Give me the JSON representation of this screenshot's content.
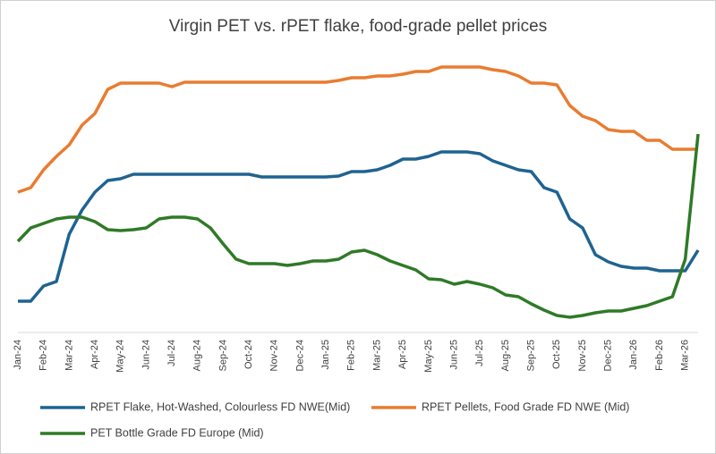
{
  "chart_data": {
    "type": "line",
    "title": "Virgin PET vs. rPET flake, food-grade pellet prices",
    "categories": [
      "Jan-24",
      null,
      "Feb-24",
      null,
      "Mar-24",
      null,
      "Apr-24",
      null,
      "May-24",
      null,
      "Jun-24",
      null,
      "Jul-24",
      null,
      "Aug-24",
      null,
      "Sep-24",
      null,
      "Oct-24",
      null,
      "Nov-24",
      null,
      "Dec-24",
      null,
      "Jan-25",
      null,
      "Feb-25",
      null,
      "Mar-25",
      null,
      "Apr-25",
      null,
      "May-25",
      null,
      "Jun-25",
      null,
      "Jul-25",
      null,
      "Aug-25",
      null,
      "Sep-25",
      null,
      "Oct-25",
      null,
      "Nov-25",
      null,
      "Dec-25",
      null,
      "Jan-26",
      null,
      "Feb-26",
      null,
      "Mar-26",
      null
    ],
    "ylim": [
      0,
      330
    ],
    "series": [
      {
        "name": "RPET Flake, Hot-Washed, Colourless FD NWE(Mid)",
        "color": "#1f6391",
        "values": [
          33,
          33,
          50,
          55,
          108,
          135,
          155,
          168,
          170,
          175,
          175,
          175,
          175,
          175,
          175,
          175,
          175,
          175,
          175,
          172,
          172,
          172,
          172,
          172,
          172,
          173,
          178,
          178,
          180,
          185,
          192,
          192,
          195,
          200,
          200,
          200,
          198,
          190,
          185,
          180,
          178,
          160,
          155,
          125,
          115,
          85,
          77,
          72,
          70,
          70,
          67,
          67,
          67,
          90
        ]
      },
      {
        "name": "RPET Pellets, Food Grade FD NWE (Mid)",
        "color": "#e97c30",
        "values": [
          155,
          160,
          180,
          195,
          208,
          230,
          243,
          270,
          277,
          277,
          277,
          277,
          273,
          278,
          278,
          278,
          278,
          278,
          278,
          278,
          278,
          278,
          278,
          278,
          278,
          280,
          283,
          283,
          285,
          285,
          287,
          290,
          290,
          295,
          295,
          295,
          295,
          292,
          290,
          285,
          277,
          277,
          275,
          252,
          240,
          235,
          225,
          223,
          223,
          213,
          213,
          203,
          203,
          203
        ]
      },
      {
        "name": "PET Bottle Grade FD Europe (Mid)",
        "color": "#2f7a27",
        "values": [
          100,
          115,
          120,
          125,
          127,
          127,
          122,
          113,
          112,
          113,
          115,
          125,
          127,
          127,
          125,
          115,
          97,
          80,
          75,
          75,
          75,
          73,
          75,
          78,
          78,
          80,
          88,
          90,
          85,
          78,
          73,
          68,
          58,
          57,
          52,
          55,
          52,
          48,
          40,
          38,
          30,
          23,
          17,
          15,
          17,
          20,
          22,
          22,
          25,
          28,
          33,
          38,
          80,
          220
        ]
      }
    ]
  }
}
